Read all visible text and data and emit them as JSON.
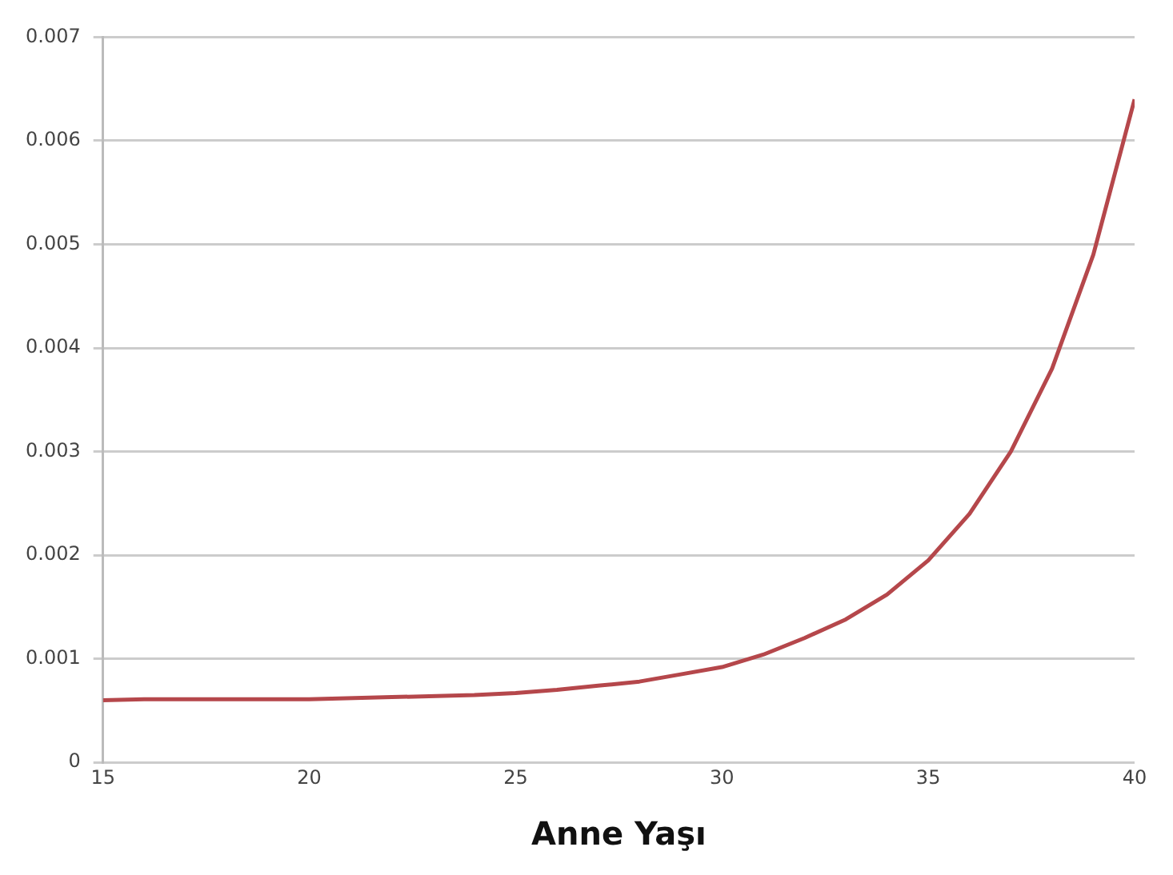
{
  "chart_data": {
    "type": "line",
    "xlabel": "Anne Yaşı",
    "x": [
      15,
      16,
      18,
      20,
      22,
      24,
      25,
      26,
      27,
      28,
      29,
      30,
      31,
      32,
      33,
      34,
      35,
      36,
      37,
      38,
      39,
      40
    ],
    "series": [
      {
        "color": "#b5474b",
        "values": [
          0.0006,
          0.00061,
          0.00061,
          0.00061,
          0.00063,
          0.00065,
          0.00067,
          0.0007,
          0.00074,
          0.00078,
          0.00085,
          0.00092,
          0.00104,
          0.0012,
          0.00138,
          0.00162,
          0.00195,
          0.0024,
          0.003,
          0.0038,
          0.0049,
          0.0064
        ]
      }
    ],
    "xlim": [
      15,
      40
    ],
    "xticks": [
      15,
      20,
      25,
      30,
      35,
      40
    ],
    "ylim": [
      0,
      0.007
    ],
    "yticks": [
      0,
      0.001,
      0.002,
      0.003,
      0.004,
      0.005,
      0.006,
      0.007
    ],
    "grid": "y",
    "legend": false,
    "marker": "none",
    "line_style": "solid"
  }
}
